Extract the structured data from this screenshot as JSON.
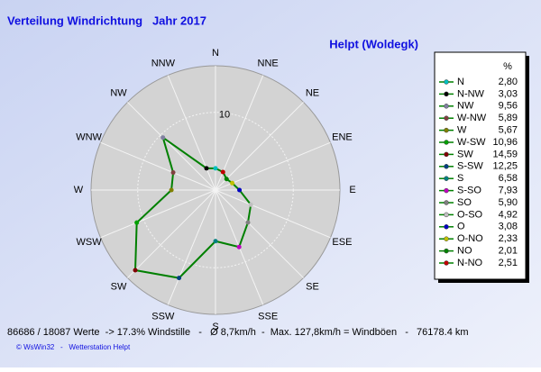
{
  "chart_data": {
    "type": "radar",
    "title": "Verteilung Windrichtung   Jahr 2017",
    "subtitle": "Helpt (Woldegk)",
    "directions": [
      "N",
      "NNE",
      "NE",
      "ENE",
      "E",
      "ESE",
      "SE",
      "SSE",
      "S",
      "SSW",
      "SW",
      "WSW",
      "W",
      "WNW",
      "NW",
      "NNW"
    ],
    "legend_header": "%",
    "legend": [
      "N",
      "N-NW",
      "NW",
      "W-NW",
      "W",
      "W-SW",
      "SW",
      "S-SW",
      "S",
      "S-SO",
      "SO",
      "O-SO",
      "O",
      "O-NO",
      "NO",
      "N-NO"
    ],
    "values": [
      2.8,
      3.03,
      9.56,
      5.89,
      5.67,
      10.96,
      14.59,
      12.25,
      6.58,
      7.93,
      5.9,
      4.92,
      3.08,
      2.33,
      2.01,
      2.51
    ],
    "value_labels": [
      "2,80",
      "3,03",
      "9,56",
      "5,89",
      "5,67",
      "10,96",
      "14,59",
      "12,25",
      "6,58",
      "7,93",
      "5,90",
      "4,92",
      "3,08",
      "2,33",
      "2,01",
      "2,51"
    ],
    "line_color": "#008000",
    "marker_colors": [
      "#00c0c0",
      "#000000",
      "#8080a0",
      "#804040",
      "#808000",
      "#00a000",
      "#800000",
      "#004080",
      "#008080",
      "#c000c0",
      "#808080",
      "#c0c0c0",
      "#0000c0",
      "#c0c000",
      "#008000",
      "#c00000"
    ],
    "rlim": [
      0,
      16
    ],
    "rticks": [
      10
    ],
    "footer": "86686 / 18087 Werte  -> 17.3% Windstille   -   Ø 8,7km/h  -  Max. 127,8km/h = Windböen   -   76178.4 km",
    "credit": "© WsWin32   -   Wetterstation Helpt"
  }
}
